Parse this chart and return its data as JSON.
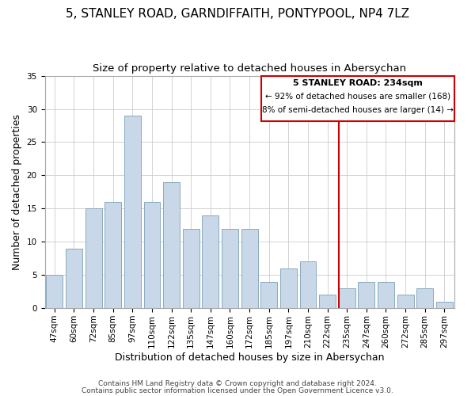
{
  "title": "5, STANLEY ROAD, GARNDIFFAITH, PONTYPOOL, NP4 7LZ",
  "subtitle": "Size of property relative to detached houses in Abersychan",
  "xlabel": "Distribution of detached houses by size in Abersychan",
  "ylabel": "Number of detached properties",
  "bar_labels": [
    "47sqm",
    "60sqm",
    "72sqm",
    "85sqm",
    "97sqm",
    "110sqm",
    "122sqm",
    "135sqm",
    "147sqm",
    "160sqm",
    "172sqm",
    "185sqm",
    "197sqm",
    "210sqm",
    "222sqm",
    "235sqm",
    "247sqm",
    "260sqm",
    "272sqm",
    "285sqm",
    "297sqm"
  ],
  "bar_values": [
    5,
    9,
    15,
    16,
    29,
    16,
    19,
    12,
    14,
    12,
    12,
    4,
    6,
    7,
    2,
    3,
    4,
    4,
    2,
    3,
    1
  ],
  "bar_color": "#c8d8e8",
  "bar_edge_color": "#8aaabf",
  "ylim": [
    0,
    35
  ],
  "yticks": [
    0,
    5,
    10,
    15,
    20,
    25,
    30,
    35
  ],
  "vline_color": "#cc0000",
  "annotation_title": "5 STANLEY ROAD: 234sqm",
  "annotation_line1": "← 92% of detached houses are smaller (168)",
  "annotation_line2": "8% of semi-detached houses are larger (14) →",
  "annotation_box_color": "#ffffff",
  "annotation_box_edge": "#cc0000",
  "footer1": "Contains HM Land Registry data © Crown copyright and database right 2024.",
  "footer2": "Contains public sector information licensed under the Open Government Licence v3.0.",
  "background_color": "#ffffff",
  "grid_color": "#cccccc",
  "title_fontsize": 11,
  "subtitle_fontsize": 9.5,
  "xlabel_fontsize": 9,
  "ylabel_fontsize": 9,
  "tick_fontsize": 7.5,
  "footer_fontsize": 6.5
}
